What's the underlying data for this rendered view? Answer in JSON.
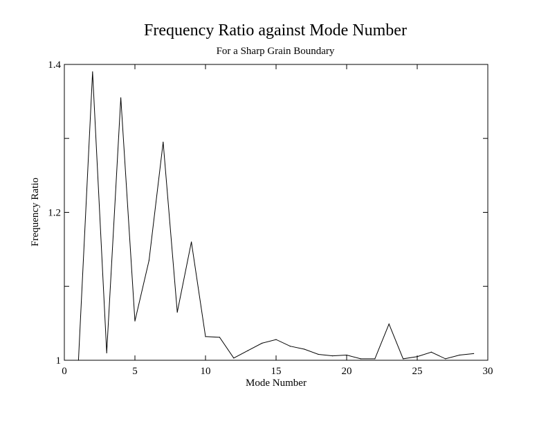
{
  "chart_data": {
    "type": "line",
    "title": "Frequency Ratio against Mode Number",
    "subtitle": "For a Sharp Grain Boundary",
    "xlabel": "Mode Number",
    "ylabel": "Frequency Ratio",
    "xlim": [
      0,
      30
    ],
    "ylim": [
      1.0,
      1.4
    ],
    "x_ticks": [
      0,
      5,
      10,
      15,
      20,
      25,
      30
    ],
    "x_tick_labels": [
      "0",
      "5",
      "10",
      "15",
      "20",
      "25",
      "30"
    ],
    "y_ticks": [
      1.0,
      1.2,
      1.4
    ],
    "y_tick_labels": [
      "1",
      "1.2",
      "1.4"
    ],
    "y_minor_ticks": [
      1.1,
      1.3
    ],
    "grid": false,
    "legend": "none",
    "series": [
      {
        "color": "#000000",
        "x": [
          1,
          2,
          3,
          4,
          5,
          6,
          7,
          8,
          9,
          10,
          11,
          12,
          13,
          14,
          15,
          16,
          17,
          18,
          19,
          20,
          21,
          22,
          23,
          24,
          25,
          26,
          27,
          28,
          29
        ],
        "y": [
          1.0,
          1.39,
          1.01,
          1.355,
          1.053,
          1.135,
          1.295,
          1.065,
          1.16,
          1.032,
          1.031,
          1.003,
          1.013,
          1.023,
          1.028,
          1.019,
          1.015,
          1.008,
          1.006,
          1.007,
          1.002,
          1.002,
          1.049,
          1.002,
          1.005,
          1.011,
          1.002,
          1.007,
          1.009
        ]
      }
    ]
  }
}
